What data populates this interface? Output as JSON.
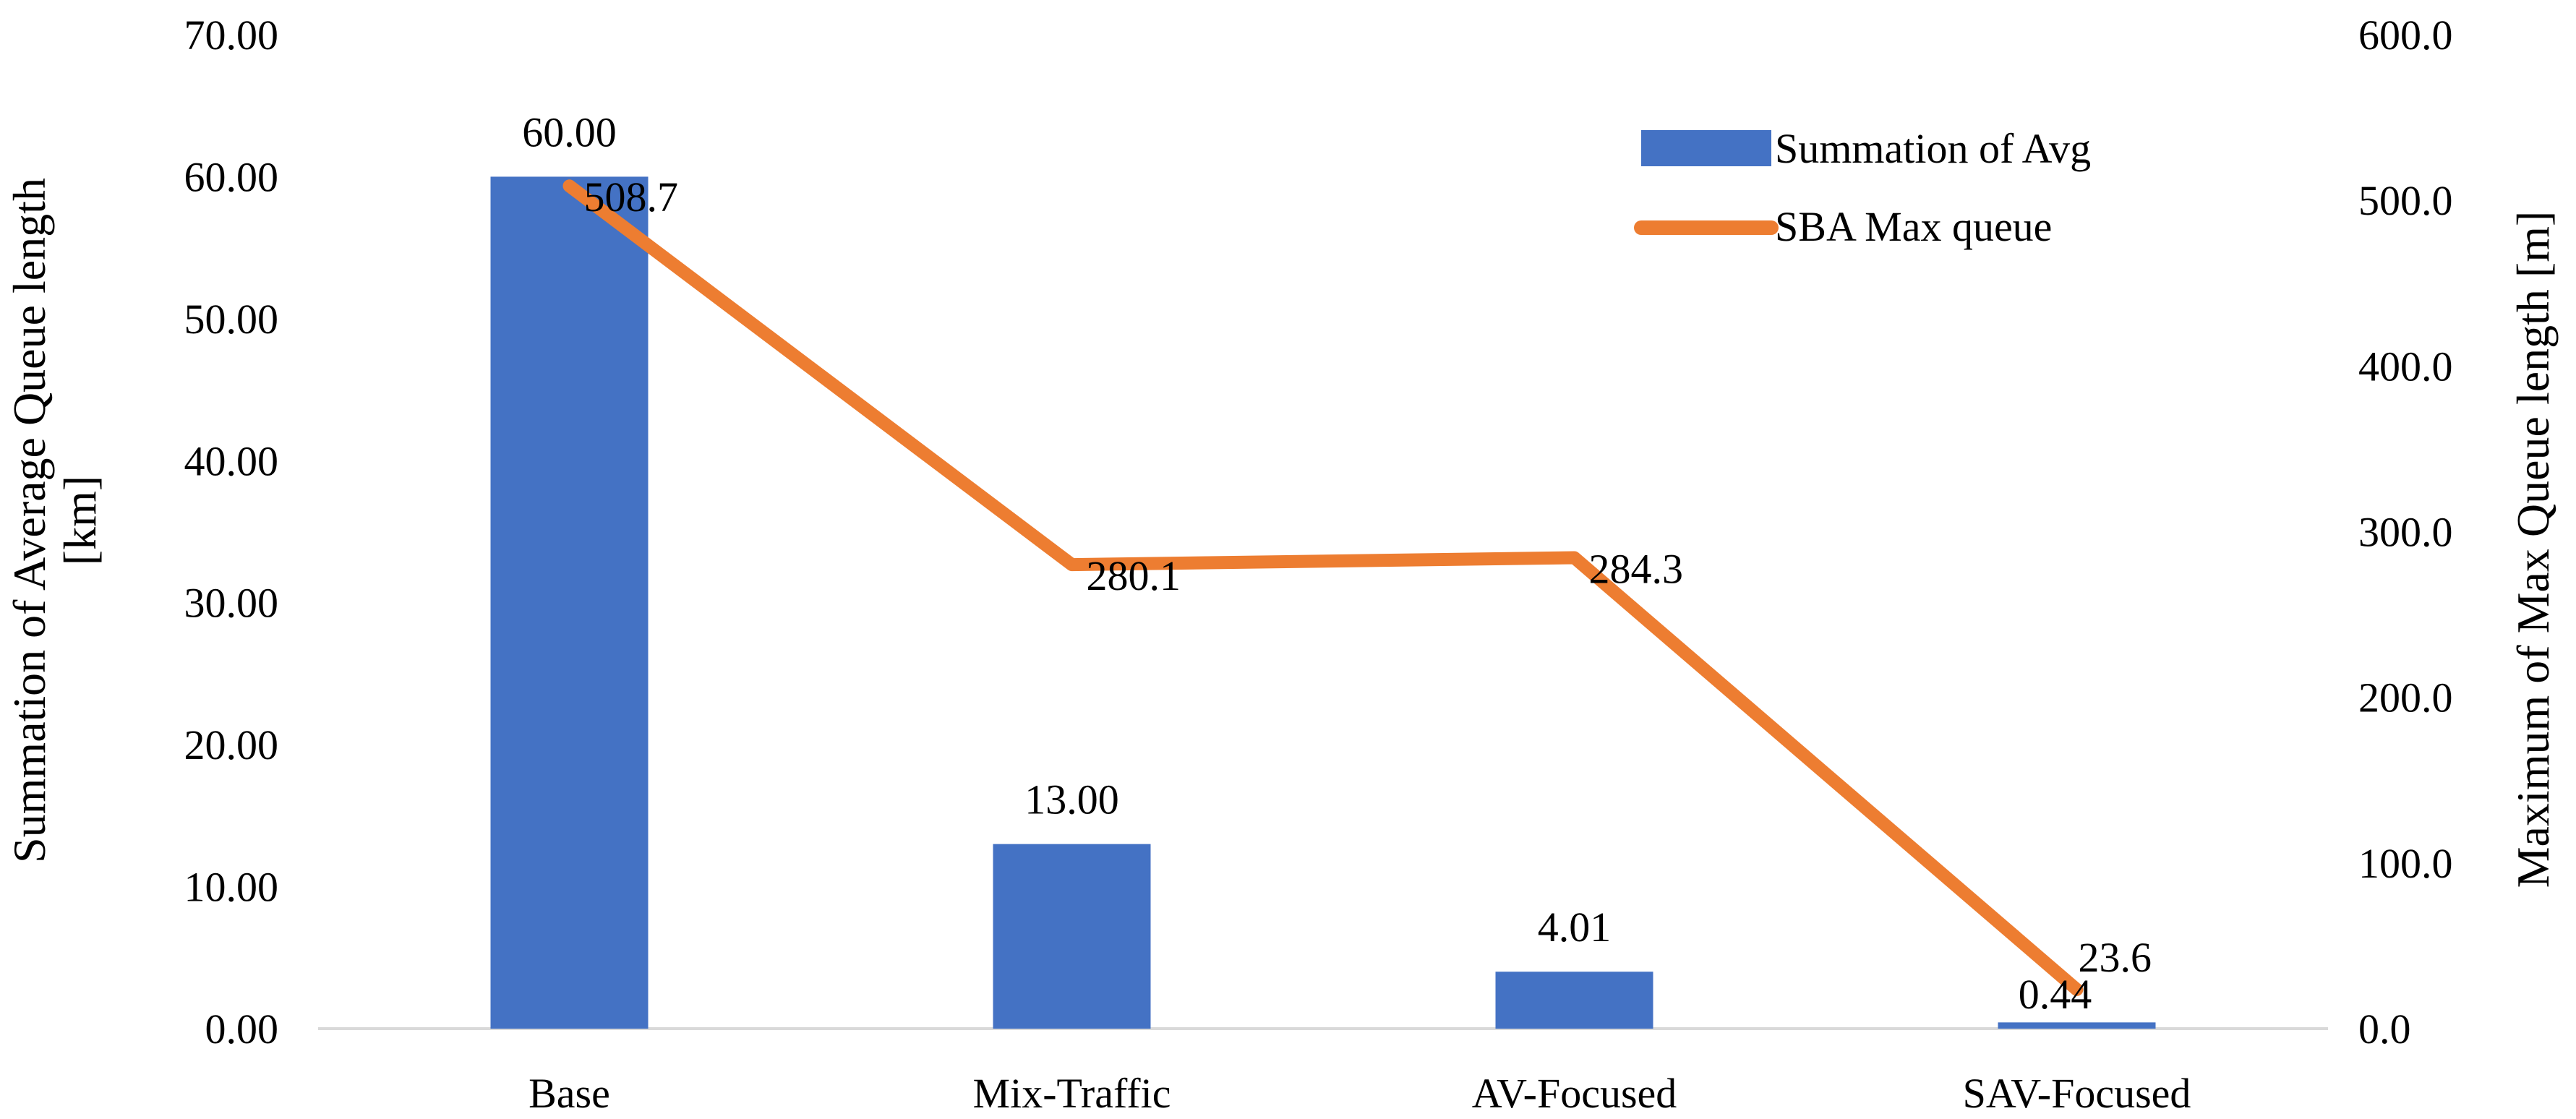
{
  "chart_data": {
    "type": "bar+line",
    "categories": [
      "Base",
      "Mix-Traffic",
      "AV-Focused",
      "SAV-Focused"
    ],
    "series": [
      {
        "name": "Summation of Avg",
        "type": "bar",
        "axis": "left",
        "color": "#4472C4",
        "values": [
          60.0,
          13.0,
          4.01,
          0.44
        ],
        "labels": [
          "60.00",
          "13.00",
          "4.01",
          "0.44"
        ]
      },
      {
        "name": "SBA Max queue",
        "type": "line",
        "axis": "right",
        "color": "#ED7D31",
        "values": [
          508.7,
          280.1,
          284.3,
          23.6
        ],
        "labels": [
          "508.7",
          "280.1",
          "284.3",
          "23.6"
        ]
      }
    ],
    "y_left": {
      "title_line1": "Summation of  Average Queue length",
      "title_line2": "[km]",
      "ylim": [
        0,
        70
      ],
      "ticks": [
        "0.00",
        "10.00",
        "20.00",
        "30.00",
        "40.00",
        "50.00",
        "60.00",
        "70.00"
      ]
    },
    "y_right": {
      "title": "Maximum of Max Queue length [m]",
      "ylim": [
        0,
        600
      ],
      "ticks": [
        "0.0",
        "100.0",
        "200.0",
        "300.0",
        "400.0",
        "500.0",
        "600.0"
      ]
    },
    "legend": {
      "position": "top-right",
      "entries": [
        "Summation of Avg",
        "SBA Max queue"
      ]
    },
    "grid": false
  }
}
